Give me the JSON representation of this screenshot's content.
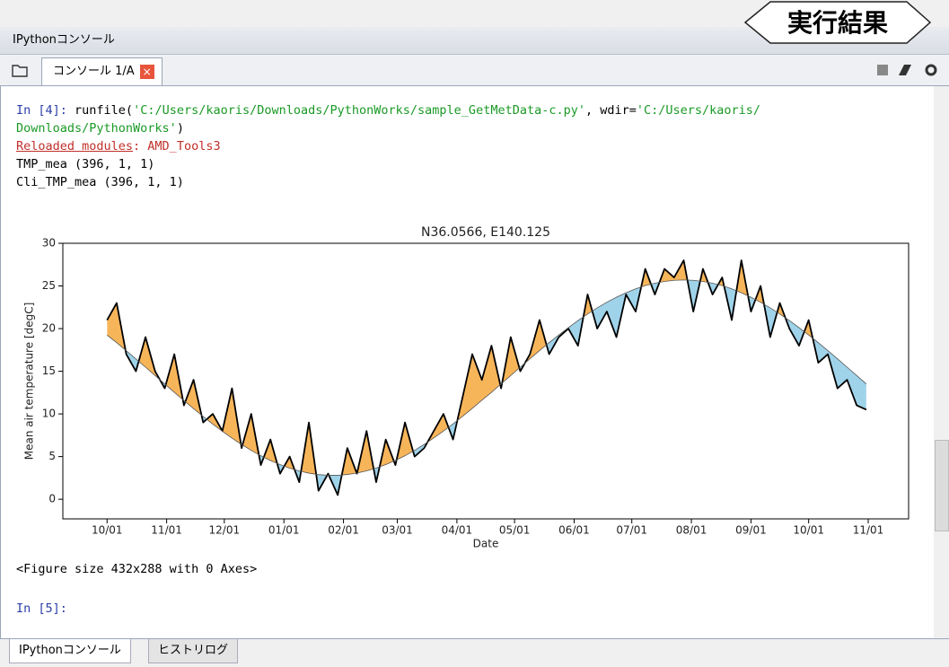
{
  "window": {
    "title": "IPythonコンソール",
    "tab": "コンソール 1/A",
    "callout": "実行結果"
  },
  "console": {
    "line1": [
      "In [4]:",
      " runfile(",
      "'C:/Users/kaoris/Downloads/PythonWorks/sample_GetMetData-c.py'",
      ", wdir=",
      "'C:/Users/kaoris/"
    ],
    "line2": [
      "Downloads/PythonWorks'",
      ")"
    ],
    "line3": [
      "Reloaded modules",
      ": AMD_Tools3"
    ],
    "line4": "TMP_mea (396, 1, 1)",
    "line5": "Cli_TMP_mea (396, 1, 1)",
    "figure": "<Figure size 432x288 with 0 Axes>",
    "prompt": "In [5]:"
  },
  "bottom_tabs": [
    "IPythonコンソール",
    "ヒストリログ"
  ],
  "chart_data": {
    "type": "line",
    "title": "N36.0566, E140.125",
    "xlabel": "Date",
    "ylabel": "Mean air temperature [degC]",
    "x": [
      0,
      5,
      10,
      15,
      20,
      25,
      30,
      35,
      40,
      45,
      50,
      55,
      60,
      65,
      70,
      75,
      80,
      85,
      90,
      95,
      100,
      105,
      110,
      115,
      120,
      125,
      130,
      135,
      140,
      145,
      150,
      155,
      160,
      165,
      170,
      175,
      180,
      185,
      190,
      195,
      200,
      205,
      210,
      215,
      220,
      225,
      230,
      235,
      240,
      245,
      250,
      255,
      260,
      265,
      270,
      275,
      280,
      285,
      290,
      295,
      300,
      305,
      310,
      315,
      320,
      325,
      330,
      335,
      340,
      345,
      350,
      355,
      360,
      365,
      370,
      375,
      380,
      385,
      390,
      395
    ],
    "series": [
      {
        "name": "TMP_mea",
        "color": "#000000",
        "values": [
          21,
          23,
          17,
          15,
          19,
          15,
          13,
          17,
          11,
          14,
          9,
          10,
          8,
          13,
          6,
          10,
          4,
          7,
          3,
          5,
          2,
          9,
          1,
          3,
          0.5,
          6,
          3,
          8,
          2,
          7,
          4,
          9,
          5,
          6,
          8,
          10,
          7,
          12,
          17,
          14,
          18,
          13,
          19,
          15,
          17,
          21,
          17,
          19,
          20,
          18,
          24,
          20,
          22,
          19,
          24,
          22,
          27,
          24,
          27,
          26,
          28,
          22,
          27,
          24,
          26,
          21,
          28,
          22,
          25,
          19,
          23,
          20,
          18,
          21,
          16,
          17,
          13,
          14,
          11,
          10.5
        ]
      },
      {
        "name": "Cli_TMP_mea",
        "color": "#555555",
        "values": [
          19.24,
          18.35,
          17.41,
          16.45,
          15.48,
          14.5,
          13.52,
          12.53,
          11.57,
          10.62,
          9.7,
          8.81,
          7.96,
          7.16,
          6.42,
          5.73,
          5.1,
          4.54,
          4.06,
          3.65,
          3.32,
          3.06,
          2.89,
          2.81,
          2.81,
          2.9,
          3.07,
          3.33,
          3.66,
          4.07,
          4.55,
          5.1,
          5.73,
          6.43,
          7.19,
          7.99,
          8.83,
          9.73,
          10.65,
          11.61,
          12.53,
          13.52,
          14.5,
          15.48,
          16.46,
          17.42,
          18.35,
          19.25,
          20.11,
          20.94,
          21.71,
          22.43,
          23.09,
          23.67,
          24.2,
          24.66,
          25.04,
          25.32,
          25.53,
          25.66,
          25.7,
          25.66,
          25.53,
          25.32,
          25.04,
          24.66,
          24.2,
          23.67,
          23.09,
          22.43,
          21.71,
          20.94,
          20.11,
          19.25,
          18.35,
          17.42,
          16.46,
          15.48,
          14.5,
          13.52
        ]
      }
    ],
    "above_color": "#f7b55a",
    "below_color": "#9fd3ea",
    "xlim": [
      -23,
      417
    ],
    "ylim": [
      -2.3,
      30
    ],
    "xticks": [
      {
        "value": 0,
        "label": "10/01"
      },
      {
        "value": 31,
        "label": "11/01"
      },
      {
        "value": 61,
        "label": "12/01"
      },
      {
        "value": 92,
        "label": "01/01"
      },
      {
        "value": 123,
        "label": "02/01"
      },
      {
        "value": 151,
        "label": "03/01"
      },
      {
        "value": 182,
        "label": "04/01"
      },
      {
        "value": 212,
        "label": "05/01"
      },
      {
        "value": 243,
        "label": "06/01"
      },
      {
        "value": 273,
        "label": "07/01"
      },
      {
        "value": 304,
        "label": "08/01"
      },
      {
        "value": 335,
        "label": "09/01"
      },
      {
        "value": 365,
        "label": "10/01"
      },
      {
        "value": 396,
        "label": "11/01"
      }
    ],
    "yticks": [
      0,
      5,
      10,
      15,
      20,
      25,
      30
    ]
  }
}
